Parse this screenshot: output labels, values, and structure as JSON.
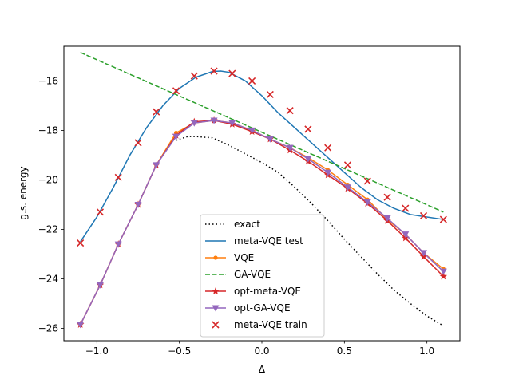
{
  "chart_data": {
    "type": "line",
    "xlabel": "Δ",
    "ylabel": "g.s. energy",
    "xlim": [
      -1.2,
      1.2
    ],
    "ylim": [
      -26.5,
      -14.6
    ],
    "xticks": [
      -1.0,
      -0.5,
      0.0,
      0.5,
      1.0
    ],
    "xtick_labels": [
      "−1.0",
      "−0.5",
      "0.0",
      "0.5",
      "1.0"
    ],
    "yticks": [
      -26,
      -24,
      -22,
      -20,
      -18,
      -16
    ],
    "ytick_labels": [
      "−26",
      "−24",
      "−22",
      "−20",
      "−18",
      "−16"
    ],
    "grid": false,
    "legend_position": "lower center",
    "series": [
      {
        "name": "exact",
        "color": "#000000",
        "style": "dotted",
        "marker": "none",
        "x": [
          -0.52,
          -0.45,
          -0.4,
          -0.3,
          -0.2,
          -0.1,
          0.0,
          0.1,
          0.2,
          0.3,
          0.4,
          0.5,
          0.6,
          0.7,
          0.8,
          0.9,
          1.0,
          1.1
        ],
        "y": [
          -18.4,
          -18.25,
          -18.25,
          -18.3,
          -18.6,
          -18.95,
          -19.3,
          -19.7,
          -20.3,
          -20.95,
          -21.65,
          -22.4,
          -23.1,
          -23.8,
          -24.45,
          -25.0,
          -25.5,
          -25.9
        ]
      },
      {
        "name": "meta-VQE test",
        "color": "#1f77b4",
        "style": "solid",
        "marker": "none",
        "x": [
          -1.1,
          -1.0,
          -0.9,
          -0.8,
          -0.7,
          -0.6,
          -0.5,
          -0.4,
          -0.3,
          -0.25,
          -0.2,
          -0.1,
          0.0,
          0.1,
          0.2,
          0.3,
          0.4,
          0.5,
          0.6,
          0.7,
          0.8,
          0.9,
          1.0,
          1.1
        ],
        "y": [
          -22.5,
          -21.5,
          -20.3,
          -19.0,
          -17.9,
          -17.0,
          -16.3,
          -15.85,
          -15.62,
          -15.6,
          -15.65,
          -16.0,
          -16.6,
          -17.3,
          -17.9,
          -18.5,
          -19.1,
          -19.7,
          -20.3,
          -20.8,
          -21.15,
          -21.4,
          -21.5,
          -21.6
        ]
      },
      {
        "name": "VQE",
        "color": "#ff7f0e",
        "style": "solid",
        "marker": "circle",
        "x": [
          -1.1,
          -0.98,
          -0.87,
          -0.75,
          -0.64,
          -0.52,
          -0.41,
          -0.29,
          -0.18,
          -0.06,
          0.05,
          0.17,
          0.28,
          0.4,
          0.52,
          0.64,
          0.76,
          0.87,
          0.98,
          1.1
        ],
        "y": [
          -25.85,
          -24.25,
          -22.6,
          -21.0,
          -19.4,
          -18.1,
          -17.7,
          -17.6,
          -17.7,
          -18.0,
          -18.35,
          -18.7,
          -19.1,
          -19.6,
          -20.2,
          -20.8,
          -21.6,
          -22.2,
          -22.95,
          -23.6
        ]
      },
      {
        "name": "GA-VQE",
        "color": "#2ca02c",
        "style": "dashed",
        "marker": "none",
        "x": [
          -1.1,
          1.1
        ],
        "y": [
          -14.85,
          -21.3
        ]
      },
      {
        "name": "opt-meta-VQE",
        "color": "#d62728",
        "style": "solid",
        "marker": "star",
        "x": [
          -1.1,
          -0.98,
          -0.87,
          -0.75,
          -0.64,
          -0.52,
          -0.41,
          -0.29,
          -0.18,
          -0.06,
          0.05,
          0.17,
          0.28,
          0.4,
          0.52,
          0.64,
          0.76,
          0.87,
          0.98,
          1.1
        ],
        "y": [
          -25.85,
          -24.25,
          -22.6,
          -21.0,
          -19.4,
          -18.2,
          -17.65,
          -17.6,
          -17.75,
          -18.05,
          -18.35,
          -18.8,
          -19.25,
          -19.8,
          -20.35,
          -20.95,
          -21.65,
          -22.35,
          -23.1,
          -23.9
        ]
      },
      {
        "name": "opt-GA-VQE",
        "color": "#9467bd",
        "style": "solid",
        "marker": "triangle_down",
        "x": [
          -1.1,
          -0.98,
          -0.87,
          -0.75,
          -0.64,
          -0.52,
          -0.41,
          -0.29,
          -0.18,
          -0.06,
          0.05,
          0.17,
          0.28,
          0.4,
          0.52,
          0.64,
          0.76,
          0.87,
          0.98,
          1.1
        ],
        "y": [
          -25.85,
          -24.25,
          -22.6,
          -21.0,
          -19.4,
          -18.25,
          -17.7,
          -17.6,
          -17.7,
          -18.0,
          -18.35,
          -18.7,
          -19.15,
          -19.7,
          -20.3,
          -20.9,
          -21.55,
          -22.2,
          -22.95,
          -23.7
        ]
      },
      {
        "name": "meta-VQE train",
        "color": "#d62728",
        "style": "none",
        "marker": "x",
        "x": [
          -1.1,
          -0.98,
          -0.87,
          -0.75,
          -0.64,
          -0.52,
          -0.41,
          -0.29,
          -0.18,
          -0.06,
          0.05,
          0.17,
          0.28,
          0.4,
          0.52,
          0.64,
          0.76,
          0.87,
          0.98,
          1.1
        ],
        "y": [
          -22.55,
          -21.3,
          -19.9,
          -18.5,
          -17.25,
          -16.4,
          -15.8,
          -15.6,
          -15.7,
          -16.0,
          -16.55,
          -17.2,
          -17.95,
          -18.7,
          -19.4,
          -20.05,
          -20.7,
          -21.15,
          -21.45,
          -21.6
        ]
      }
    ]
  }
}
